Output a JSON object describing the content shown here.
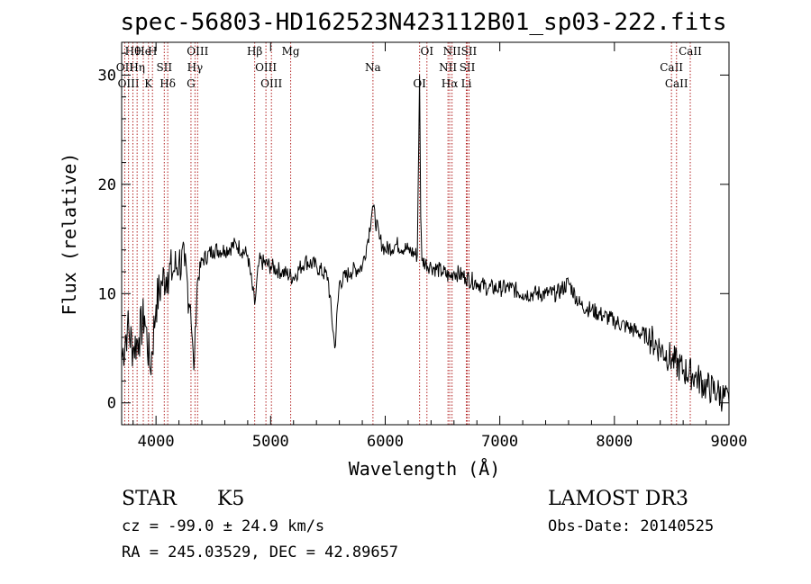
{
  "chart_data": {
    "type": "line",
    "title": "spec-56803-HD162523N423112B01_sp03-222.fits",
    "xlabel": "Wavelength (Å)",
    "ylabel": "Flux (relative)",
    "xlim": [
      3700,
      9000
    ],
    "ylim": [
      -2,
      33
    ],
    "xticks": [
      4000,
      5000,
      6000,
      7000,
      8000,
      9000
    ],
    "yticks": [
      0,
      10,
      20,
      30
    ],
    "series": [
      {
        "name": "flux",
        "x": [
          3700,
          3750,
          3800,
          3850,
          3900,
          3950,
          4000,
          4050,
          4100,
          4150,
          4200,
          4250,
          4300,
          4330,
          4360,
          4400,
          4500,
          4600,
          4700,
          4800,
          4861,
          4900,
          5000,
          5100,
          5200,
          5300,
          5400,
          5500,
          5560,
          5600,
          5700,
          5800,
          5850,
          5890,
          5950,
          6000,
          6100,
          6200,
          6280,
          6300,
          6310,
          6320,
          6400,
          6500,
          6563,
          6600,
          6700,
          6800,
          6900,
          7000,
          7100,
          7200,
          7300,
          7400,
          7500,
          7600,
          7700,
          7800,
          7900,
          8000,
          8100,
          8200,
          8300,
          8400,
          8500,
          8600,
          8700,
          8800,
          8900,
          9000
        ],
        "y": [
          4,
          7,
          5,
          6,
          8,
          3,
          9,
          11,
          12,
          12,
          13,
          12.5,
          9,
          3,
          11,
          13,
          14,
          14,
          14.5,
          13.5,
          9,
          13,
          12.5,
          12,
          11.5,
          13,
          12.5,
          11.5,
          5,
          11,
          12,
          12.5,
          15,
          18,
          15,
          14,
          14.5,
          14,
          13.5,
          30,
          17,
          13,
          12.5,
          12,
          11.5,
          12,
          11.5,
          11,
          10.5,
          10.5,
          10.5,
          10,
          10,
          10,
          10,
          11,
          9,
          8.5,
          8,
          7.5,
          7,
          6.5,
          6,
          5,
          4,
          3,
          2.5,
          1.5,
          1,
          0
        ]
      }
    ],
    "lines": [
      {
        "name": "Hθ",
        "x": 3798
      },
      {
        "name": "OII",
        "x": 3727
      },
      {
        "name": "OIII",
        "x": 3760
      },
      {
        "name": "He",
        "x": 3889
      },
      {
        "name": "Hη",
        "x": 3835
      },
      {
        "name": "K",
        "x": 3934
      },
      {
        "name": "H",
        "x": 3969
      },
      {
        "name": "SII",
        "x": 4072
      },
      {
        "name": "Hδ",
        "x": 4102
      },
      {
        "name": "OIII",
        "x": 4363
      },
      {
        "name": "Hγ",
        "x": 4340
      },
      {
        "name": "G",
        "x": 4305
      },
      {
        "name": "Hβ",
        "x": 4861
      },
      {
        "name": "OIII",
        "x": 4959
      },
      {
        "name": "OIII",
        "x": 5007
      },
      {
        "name": "Mg",
        "x": 5175
      },
      {
        "name": "Na",
        "x": 5893
      },
      {
        "name": "OI",
        "x": 6300
      },
      {
        "name": "OI",
        "x": 6364
      },
      {
        "name": "NII",
        "x": 6548
      },
      {
        "name": "Hα",
        "x": 6563
      },
      {
        "name": "NII",
        "x": 6583
      },
      {
        "name": "SII",
        "x": 6716
      },
      {
        "name": "Li",
        "x": 6708
      },
      {
        "name": "SII",
        "x": 6731
      },
      {
        "name": "CaII",
        "x": 8498
      },
      {
        "name": "CaII",
        "x": 8542
      },
      {
        "name": "CaII",
        "x": 8662
      }
    ]
  },
  "info": {
    "object_type": "STAR",
    "subclass": "K5",
    "survey": "LAMOST DR3",
    "cz": "cz = -99.0 ± 24.9 km/s",
    "obs_date": "Obs-Date: 20140525",
    "coords": "RA = 245.03529, DEC =  42.89657"
  },
  "colors": {
    "line_marker": "#b22222",
    "spectrum": "#000000",
    "axes": "#000000"
  }
}
